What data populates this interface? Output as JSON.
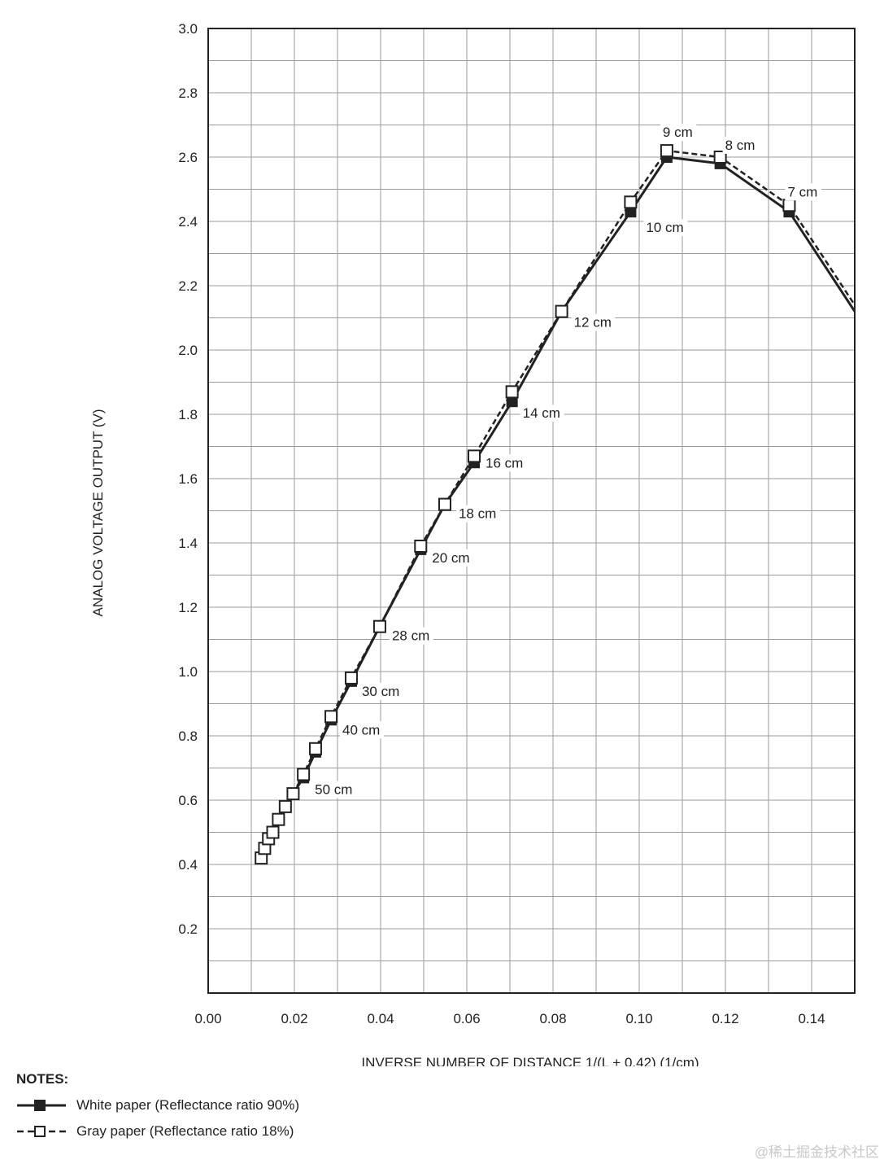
{
  "chart_data": {
    "type": "line",
    "xlabel": "INVERSE NUMBER OF DISTANCE 1/(L + 0.42) (1/cm)",
    "ylabel": "ANALOG VOLTAGE OUTPUT (V)",
    "xlim": [
      0,
      0.15
    ],
    "ylim": [
      0,
      3.0
    ],
    "x_ticks": [
      "0.00",
      "0.02",
      "0.04",
      "0.06",
      "0.08",
      "0.10",
      "0.12",
      "0.14"
    ],
    "y_ticks": [
      "0.2",
      "0.4",
      "0.6",
      "0.8",
      "1.0",
      "1.2",
      "1.4",
      "1.6",
      "1.8",
      "2.0",
      "2.2",
      "2.4",
      "2.6",
      "2.8",
      "3.0"
    ],
    "grid": true,
    "legend_position": "bottom-left",
    "series": [
      {
        "name": "White paper (Reflectance ratio 90%)",
        "marker": "filled-square",
        "line": "solid",
        "color": "#222222",
        "x": [
          0.0123,
          0.0131,
          0.014,
          0.015,
          0.0163,
          0.0179,
          0.0197,
          0.0221,
          0.0249,
          0.0285,
          0.0332,
          0.0398,
          0.0493,
          0.0549,
          0.0617,
          0.0705,
          0.082,
          0.098,
          0.1064,
          0.1188,
          0.1348,
          0.15
        ],
        "y": [
          0.42,
          0.45,
          0.48,
          0.5,
          0.54,
          0.58,
          0.62,
          0.67,
          0.75,
          0.85,
          0.97,
          1.14,
          1.38,
          1.52,
          1.65,
          1.84,
          2.12,
          2.43,
          2.6,
          2.58,
          2.43,
          2.12
        ]
      },
      {
        "name": "Gray paper (Reflectance ratio 18%)",
        "marker": "open-square",
        "line": "dashed",
        "color": "#222222",
        "x": [
          0.0123,
          0.0131,
          0.014,
          0.015,
          0.0163,
          0.0179,
          0.0197,
          0.0221,
          0.0249,
          0.0285,
          0.0332,
          0.0398,
          0.0493,
          0.0549,
          0.0617,
          0.0705,
          0.082,
          0.098,
          0.1064,
          0.1188,
          0.1348,
          0.15
        ],
        "y": [
          0.42,
          0.45,
          0.48,
          0.5,
          0.54,
          0.58,
          0.62,
          0.68,
          0.76,
          0.86,
          0.98,
          1.14,
          1.39,
          1.52,
          1.67,
          1.87,
          2.12,
          2.46,
          2.62,
          2.6,
          2.45,
          2.14
        ]
      }
    ],
    "annotations": [
      {
        "text": "50 cm",
        "x": 0.0221,
        "y": 0.67
      },
      {
        "text": "40 cm",
        "x": 0.0285,
        "y": 0.85
      },
      {
        "text": "30 cm",
        "x": 0.0332,
        "y": 0.97
      },
      {
        "text": "28 cm",
        "x": 0.0398,
        "y": 1.14
      },
      {
        "text": "20 cm",
        "x": 0.0493,
        "y": 1.38
      },
      {
        "text": "18 cm",
        "x": 0.0549,
        "y": 1.52
      },
      {
        "text": "16 cm",
        "x": 0.0617,
        "y": 1.65
      },
      {
        "text": "14 cm",
        "x": 0.0705,
        "y": 1.84
      },
      {
        "text": "12 cm",
        "x": 0.082,
        "y": 2.12
      },
      {
        "text": "10 cm",
        "x": 0.098,
        "y": 2.43
      },
      {
        "text": "9 cm",
        "x": 0.1064,
        "y": 2.62
      },
      {
        "text": "8 cm",
        "x": 0.1188,
        "y": 2.6
      },
      {
        "text": "7 cm",
        "x": 0.1348,
        "y": 2.45
      }
    ]
  },
  "notes": {
    "title": "NOTES:",
    "white_label": "White paper (Reflectance ratio 90%)",
    "gray_label": "Gray paper (Reflectance ratio 18%)"
  },
  "watermark": "@稀土掘金技术社区"
}
